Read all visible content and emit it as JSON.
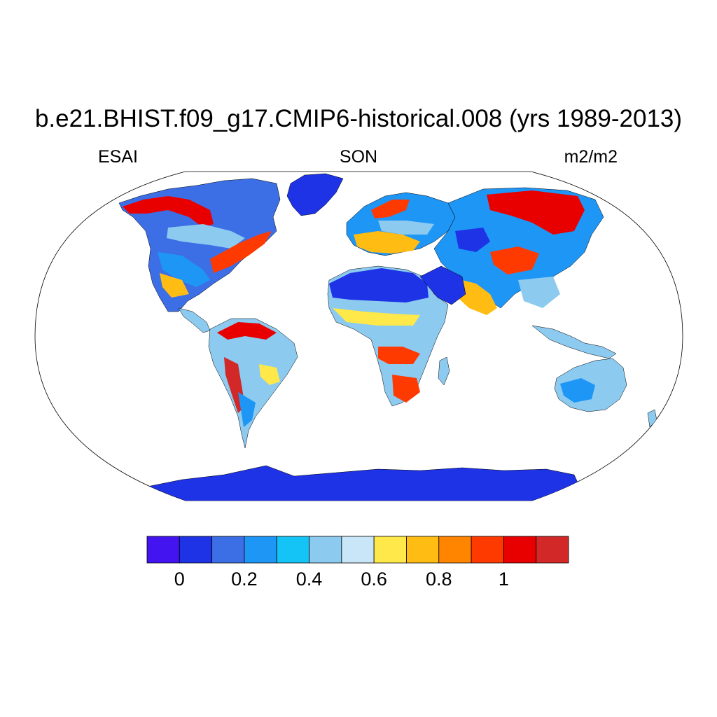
{
  "title": "b.e21.BHIST.f09_g17.CMIP6-historical.008 (yrs 1989-2013)",
  "left_label": "ESAI",
  "center_label": "SON",
  "right_label": "m2/m2",
  "colorbar": {
    "colors": [
      "#4414f0",
      "#1e32e6",
      "#3c6ee6",
      "#1e96f6",
      "#14c4f6",
      "#8ccaf0",
      "#c8e6f8",
      "#ffe84a",
      "#ffbc12",
      "#ff8400",
      "#ff3a00",
      "#e80000",
      "#d22828"
    ],
    "levels": [
      0,
      0.2,
      0.4,
      0.6,
      0.8,
      1
    ],
    "tick_labels": [
      "0",
      "0.2",
      "0.4",
      "0.6",
      "0.8",
      "1"
    ],
    "min": -0.1,
    "max": 1.2
  }
}
